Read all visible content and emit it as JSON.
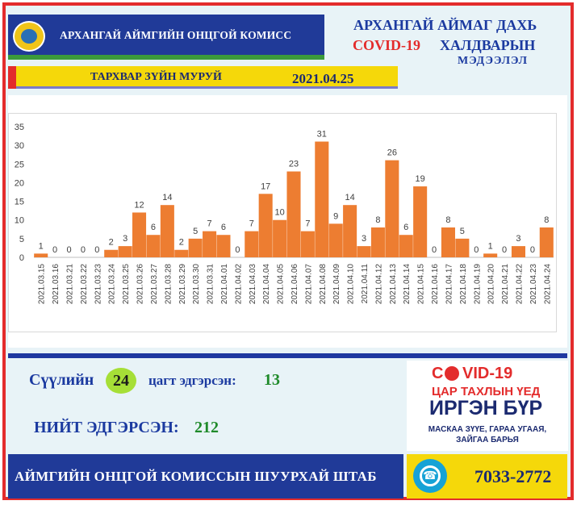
{
  "header": {
    "org_name": "АРХАНГАЙ АЙМГИЙН ОНЦГОЙ КОМИСС",
    "title_line1": "АРХАНГАЙ АЙМАГ ДАХЬ",
    "title_covid": "COVID-19",
    "title_line2": "ХАЛДВАРЫН",
    "title_line3": "МЭДЭЭЛЭЛ",
    "curve_label": "ТАРХВАР ЗҮЙН МУРУЙ",
    "date": "2021.04.25"
  },
  "colors": {
    "bar": "#ed7d31",
    "frame": "#e32c2c",
    "header_blue": "#203a98",
    "accent_yellow": "#f5d80a",
    "green_value": "#1f8a2a"
  },
  "chart_data": {
    "type": "bar",
    "categories": [
      "2021.03.15",
      "2021.03.16",
      "2021.03.21",
      "2021.03.22",
      "2021.03.23",
      "2021.03.24",
      "2021.03.25",
      "2021.03.26",
      "2021.03.27",
      "2021.03.28",
      "2021.03.29",
      "2021.03.30",
      "2021.03.31",
      "2021.04.01",
      "2021.04.02",
      "2021.04.03",
      "2021.04.04",
      "2021.04.05",
      "2021.04.06",
      "2021.04.07",
      "2021.04.08",
      "2021.04.09",
      "2021.04.10",
      "2021.04.11",
      "2021.04.12",
      "2021.04.13",
      "2021.04.14",
      "2021.04.15",
      "2021.04.16",
      "2021.04.17",
      "2021.04.18",
      "2021.04.19",
      "2021.04.20",
      "2021.04.21",
      "2021.04.22",
      "2021.04.23",
      "2021.04.24"
    ],
    "values": [
      1,
      0,
      0,
      0,
      0,
      2,
      3,
      12,
      6,
      14,
      2,
      5,
      7,
      6,
      0,
      7,
      17,
      10,
      23,
      7,
      31,
      9,
      14,
      3,
      8,
      26,
      6,
      19,
      0,
      8,
      5,
      0,
      1,
      0,
      3,
      0,
      8
    ],
    "yticks": [
      0,
      5,
      10,
      15,
      20,
      25,
      30,
      35
    ],
    "ylim": [
      0,
      35
    ],
    "grid": false,
    "legend": "none"
  },
  "stats": {
    "recovered_prefix": "Сүүлийн",
    "hours": "24",
    "recovered_suffix": "цагт эдгэрсэн:",
    "recovered_value": "13",
    "total_label": "НИЙТ ЭДГЭРСЭН:",
    "total_value": "212"
  },
  "promo": {
    "covid_c": "C",
    "covid_rest": "VID-19",
    "line2": "ЦАР ТАХЛЫН ҮЕД",
    "line3": "ИРГЭН БҮР",
    "line4": "МАСКАА ЗҮҮЕ, ГАРАА УГААЯ, ЗАЙГАА БАРЬЯ"
  },
  "footer": {
    "text": "АЙМГИЙН ОНЦГОЙ КОМИССЫН ШУУРХАЙ ШТАБ",
    "phone_icon": "phone-icon",
    "phone": "7033-2772"
  }
}
